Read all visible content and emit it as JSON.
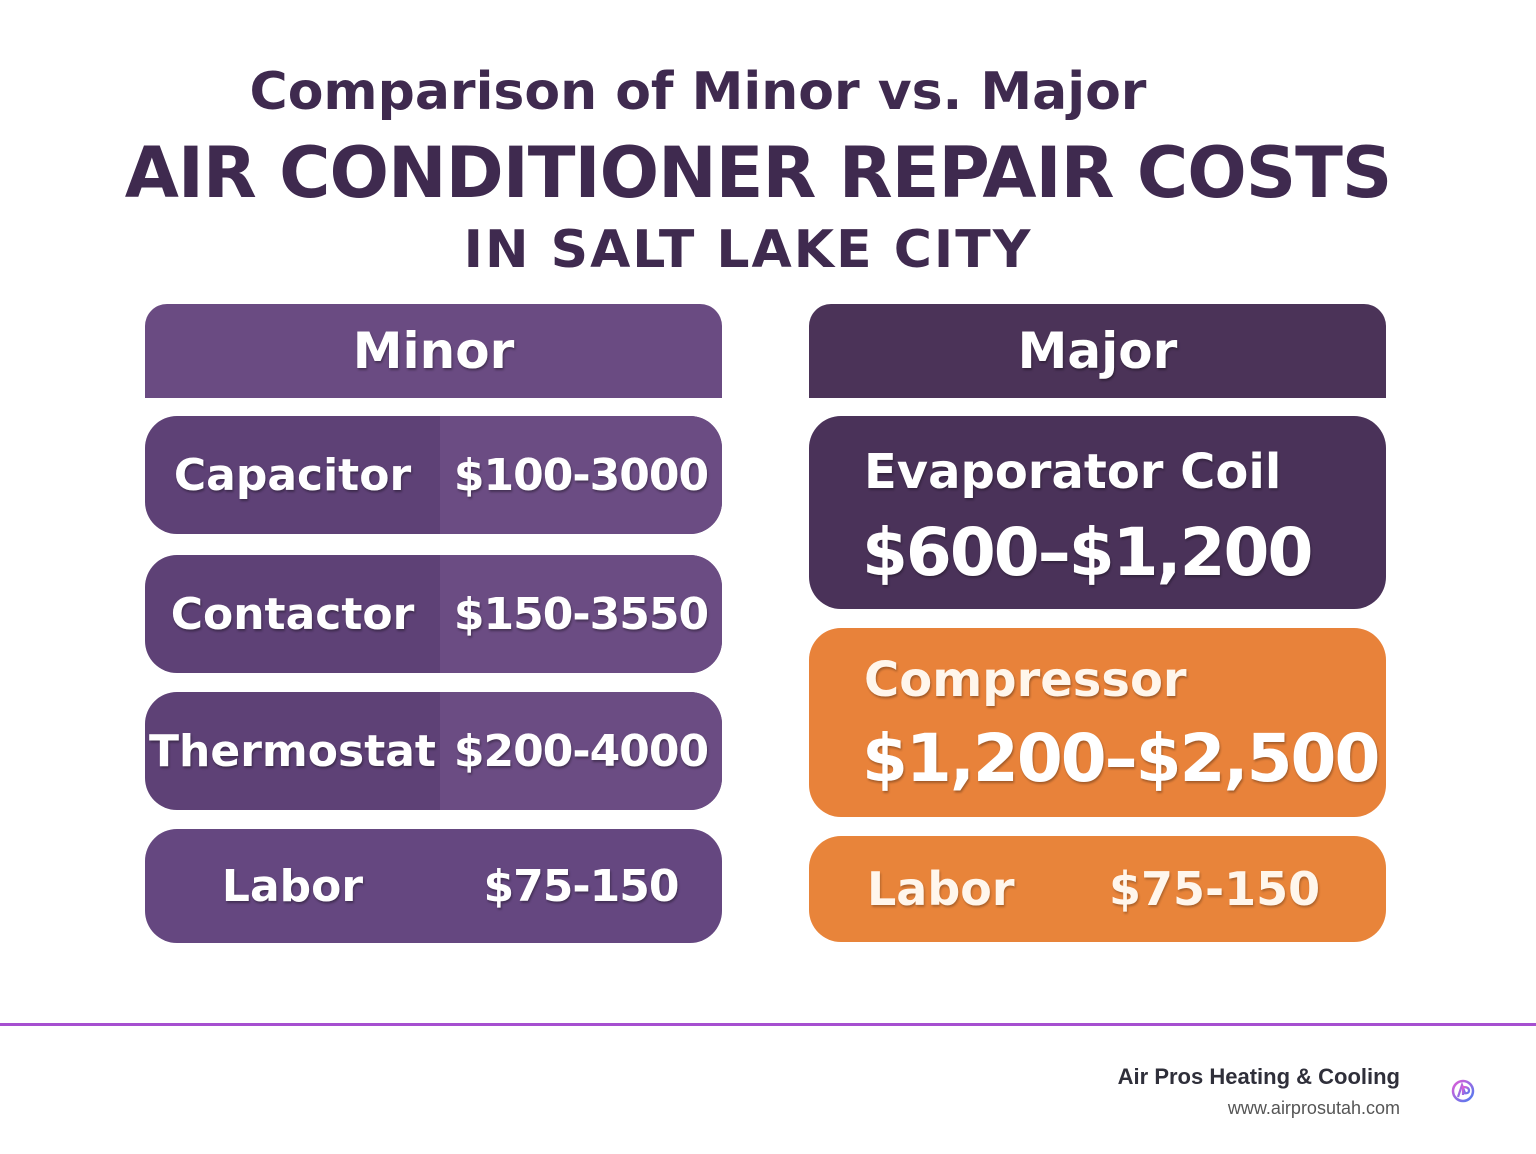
{
  "title": {
    "line1": "Comparison of Minor vs. Major",
    "line2": "AIR CONDITIONER REPAIR COSTS",
    "line3": "IN SALT LAKE CITY"
  },
  "minor": {
    "header": "Minor",
    "rows": [
      {
        "label": "Capacitor",
        "value": "$100-3000"
      },
      {
        "label": "Contactor",
        "value": "$150-3550"
      },
      {
        "label": "Thermostat",
        "value": "$200-4000"
      },
      {
        "label": "Labor",
        "value": "$75-150"
      }
    ]
  },
  "major": {
    "header": "Major",
    "cards": [
      {
        "label": "Evaporator Coil",
        "value": "$600–$1,200"
      },
      {
        "label": "Compressor",
        "value": "$1,200–$2,500"
      }
    ],
    "labor": {
      "label": "Labor",
      "value": "$75-150"
    }
  },
  "footer": {
    "company": "Air Pros Heating & Cooling",
    "website": "www.airprosutah.com",
    "logo_icon": "air-pros-logo-icon"
  },
  "colors": {
    "minor_purple": "#6a4b82",
    "major_purple": "#4a3259",
    "orange": "#e8823a",
    "divider": "#a64fd0",
    "title": "#3f2a4f"
  }
}
